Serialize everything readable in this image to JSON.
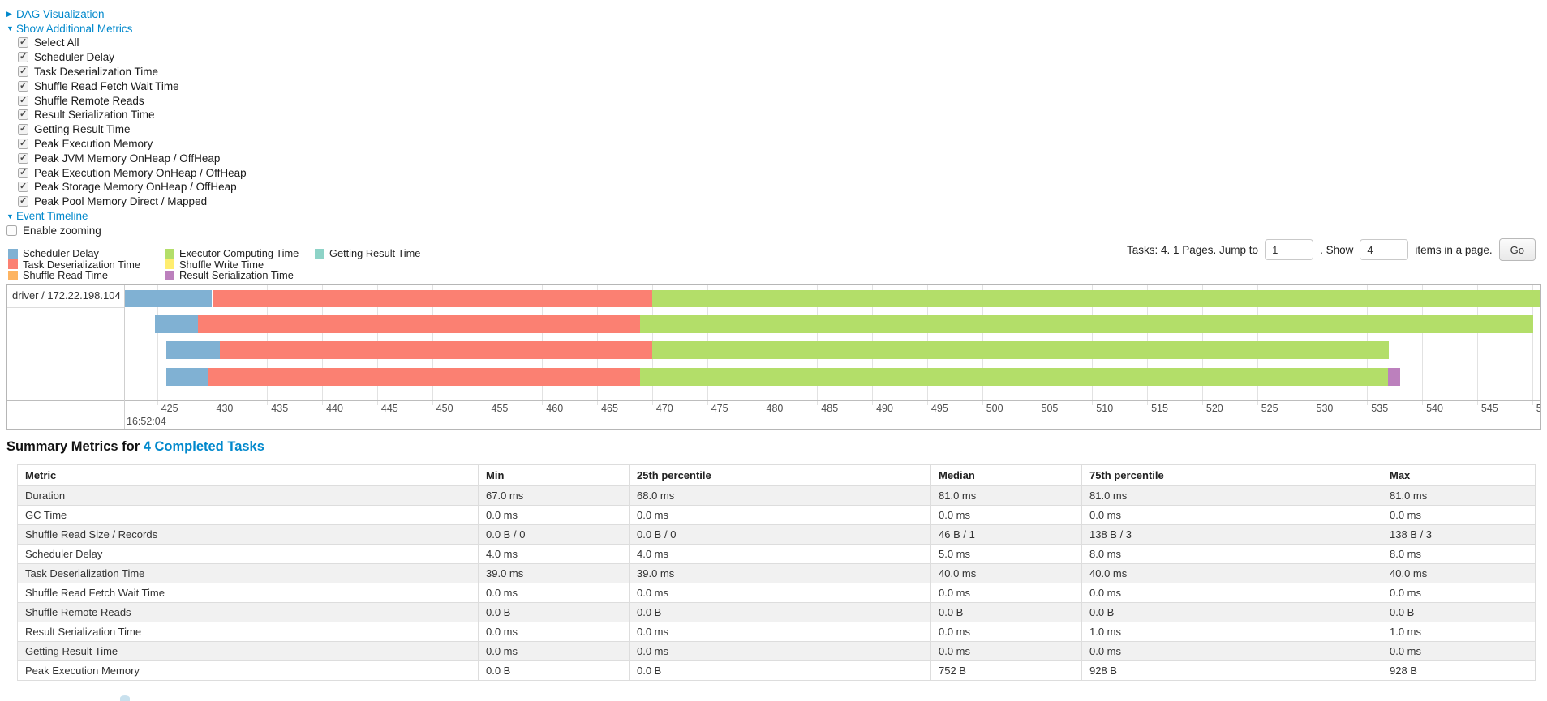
{
  "controls": {
    "dag": {
      "arrow": "▶",
      "label": "DAG Visualization"
    },
    "metrics_toggle": {
      "arrow": "▼",
      "label": "Show Additional Metrics"
    },
    "checkboxes": [
      "Select All",
      "Scheduler Delay",
      "Task Deserialization Time",
      "Shuffle Read Fetch Wait Time",
      "Shuffle Remote Reads",
      "Result Serialization Time",
      "Getting Result Time",
      "Peak Execution Memory",
      "Peak JVM Memory OnHeap / OffHeap",
      "Peak Execution Memory OnHeap / OffHeap",
      "Peak Storage Memory OnHeap / OffHeap",
      "Peak Pool Memory Direct / Mapped"
    ],
    "event_timeline": {
      "arrow": "▼",
      "label": "Event Timeline"
    },
    "enable_zooming": {
      "label": "Enable zooming",
      "checked": false
    }
  },
  "pagination": {
    "tasks_text": "Tasks: 4. 1 Pages. Jump to",
    "jump_value": "1",
    "show_text": ". Show",
    "show_value": "4",
    "items_text": "items in a page.",
    "go_label": "Go"
  },
  "colors": {
    "scheduler_delay": "#80B1D3",
    "task_deserialization": "#FB8072",
    "shuffle_read": "#FDB462",
    "executor_computing": "#B3DE69",
    "shuffle_write": "#FFED6F",
    "result_serialization": "#BC80BD",
    "getting_result": "#8DD3C7"
  },
  "legend": {
    "columns": [
      [
        {
          "label": "Scheduler Delay",
          "color_key": "scheduler_delay"
        },
        {
          "label": "Task Deserialization Time",
          "color_key": "task_deserialization"
        },
        {
          "label": "Shuffle Read Time",
          "color_key": "shuffle_read"
        }
      ],
      [
        {
          "label": "Executor Computing Time",
          "color_key": "executor_computing"
        },
        {
          "label": "Shuffle Write Time",
          "color_key": "shuffle_write"
        },
        {
          "label": "Result Serialization Time",
          "color_key": "result_serialization"
        }
      ],
      [
        {
          "label": "Getting Result Time",
          "color_key": "getting_result"
        }
      ]
    ]
  },
  "chart_data": {
    "type": "timeline",
    "executor_label": "driver / 172.22.198.104",
    "axis": {
      "window_start": 422.0,
      "window_end": 550.9,
      "tick_start": 425,
      "tick_end": 550,
      "tick_step": 5,
      "major_label": "16:52:04"
    },
    "tasks": [
      {
        "segments": [
          {
            "type": "scheduler_delay",
            "t0": 422.1,
            "t1": 430.0
          },
          {
            "type": "task_deserialization",
            "t0": 430.0,
            "t1": 470.0
          },
          {
            "type": "executor_computing",
            "t0": 470.0,
            "t1": 550.7
          }
        ]
      },
      {
        "segments": [
          {
            "type": "scheduler_delay",
            "t0": 424.8,
            "t1": 428.7
          },
          {
            "type": "task_deserialization",
            "t0": 428.7,
            "t1": 468.9
          },
          {
            "type": "executor_computing",
            "t0": 468.9,
            "t1": 550.1
          }
        ]
      },
      {
        "segments": [
          {
            "type": "scheduler_delay",
            "t0": 425.8,
            "t1": 430.7
          },
          {
            "type": "task_deserialization",
            "t0": 430.7,
            "t1": 470.0
          },
          {
            "type": "executor_computing",
            "t0": 470.0,
            "t1": 537.0
          }
        ]
      },
      {
        "segments": [
          {
            "type": "scheduler_delay",
            "t0": 425.8,
            "t1": 429.6
          },
          {
            "type": "task_deserialization",
            "t0": 429.6,
            "t1": 468.9
          },
          {
            "type": "executor_computing",
            "t0": 468.9,
            "t1": 536.9
          },
          {
            "type": "result_serialization",
            "t0": 536.9,
            "t1": 538.0
          }
        ]
      }
    ]
  },
  "summary": {
    "heading_prefix": "Summary Metrics for ",
    "heading_link": "4 Completed Tasks",
    "columns": [
      "Metric",
      "Min",
      "25th percentile",
      "Median",
      "75th percentile",
      "Max"
    ],
    "rows": [
      [
        "Duration",
        "67.0 ms",
        "68.0 ms",
        "81.0 ms",
        "81.0 ms",
        "81.0 ms"
      ],
      [
        "GC Time",
        "0.0 ms",
        "0.0 ms",
        "0.0 ms",
        "0.0 ms",
        "0.0 ms"
      ],
      [
        "Shuffle Read Size / Records",
        "0.0 B / 0",
        "0.0 B / 0",
        "46 B / 1",
        "138 B / 3",
        "138 B / 3"
      ],
      [
        "Scheduler Delay",
        "4.0 ms",
        "4.0 ms",
        "5.0 ms",
        "8.0 ms",
        "8.0 ms"
      ],
      [
        "Task Deserialization Time",
        "39.0 ms",
        "39.0 ms",
        "40.0 ms",
        "40.0 ms",
        "40.0 ms"
      ],
      [
        "Shuffle Read Fetch Wait Time",
        "0.0 ms",
        "0.0 ms",
        "0.0 ms",
        "0.0 ms",
        "0.0 ms"
      ],
      [
        "Shuffle Remote Reads",
        "0.0 B",
        "0.0 B",
        "0.0 B",
        "0.0 B",
        "0.0 B"
      ],
      [
        "Result Serialization Time",
        "0.0 ms",
        "0.0 ms",
        "0.0 ms",
        "1.0 ms",
        "1.0 ms"
      ],
      [
        "Getting Result Time",
        "0.0 ms",
        "0.0 ms",
        "0.0 ms",
        "0.0 ms",
        "0.0 ms"
      ],
      [
        "Peak Execution Memory",
        "0.0 B",
        "0.0 B",
        "752 B",
        "928 B",
        "928 B"
      ]
    ]
  }
}
